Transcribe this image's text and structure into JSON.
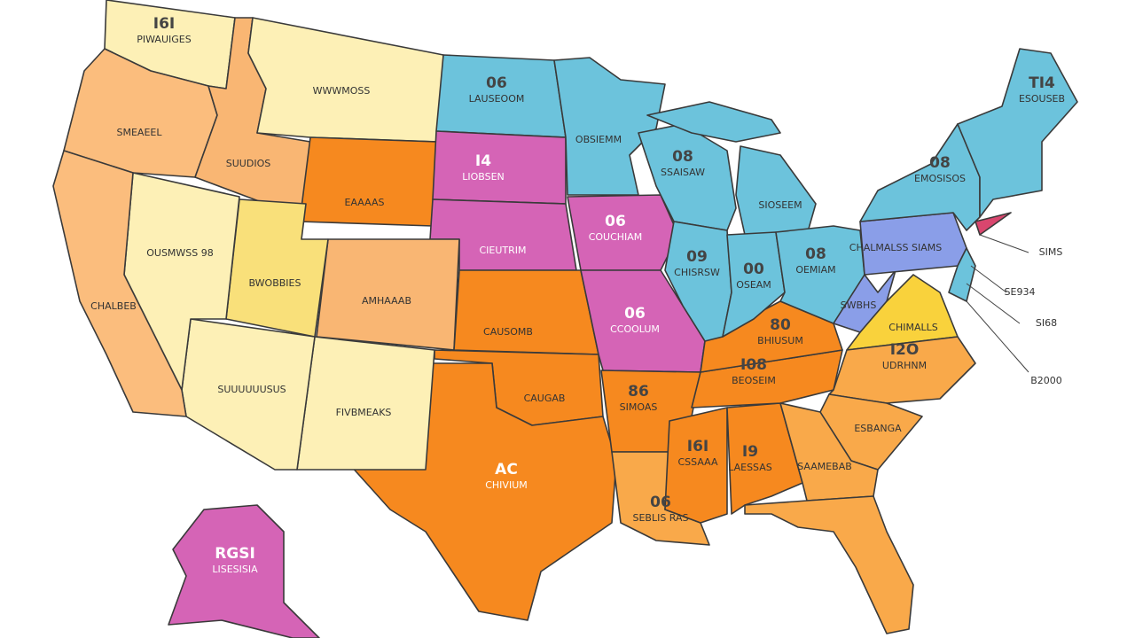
{
  "regions": [
    {
      "name": "PIWAUIGES",
      "code": "I6I"
    },
    {
      "name": "WWWMOSS"
    },
    {
      "name": "SMEAEEL"
    },
    {
      "name": "SUUDIOS"
    },
    {
      "name": "OUSMWSS 98"
    },
    {
      "name": "CHALBEB"
    },
    {
      "name": "BWOBBIES"
    },
    {
      "name": "SUUUUUUSUS"
    },
    {
      "name": "FIVBMEAKS"
    },
    {
      "name": "EAAAAS"
    },
    {
      "name": "AMHAAAB"
    },
    {
      "name": "LAUSEOOM",
      "code": "06"
    },
    {
      "name": "LIOBSEN",
      "code": "I4"
    },
    {
      "name": "CIEUTRIM"
    },
    {
      "name": "CAUSOMB"
    },
    {
      "name": "CAUGAB"
    },
    {
      "name": "CHIVIUM",
      "code": "AC"
    },
    {
      "name": "OBSIEMM"
    },
    {
      "name": "COUCHIAM",
      "code": "06"
    },
    {
      "name": "CCOOLUM",
      "code": "06"
    },
    {
      "name": "SIMOAS",
      "code": "86"
    },
    {
      "name": "SEBLIS RAS",
      "code": "06"
    },
    {
      "name": "SSAISAW",
      "code": "08"
    },
    {
      "name": "CHISRSW",
      "code": "09"
    },
    {
      "name": "SIOSEEM"
    },
    {
      "name": "OSEAM",
      "code": "00"
    },
    {
      "name": "OEMIAM",
      "code": "08"
    },
    {
      "name": "BHIUSUM",
      "code": "80"
    },
    {
      "name": "BEOSEIM",
      "code": "I08"
    },
    {
      "name": "CSSAAA",
      "code": "I6I"
    },
    {
      "name": "LAESSAS",
      "code": "I9"
    },
    {
      "name": "SAAMEBAB"
    },
    {
      "name": "ESBANGA"
    },
    {
      "name": "UDRHNM",
      "code": "I2O"
    },
    {
      "name": "CHIMALLS"
    },
    {
      "name": "SWBHS"
    },
    {
      "name": "CHALMALSS SIAMS"
    },
    {
      "name": "EMOSISOS",
      "code": "08"
    },
    {
      "name": "ESOUSEB",
      "code": "TI4"
    },
    {
      "name": "LISESISIA",
      "code": "RGSI"
    }
  ],
  "callouts": [
    "SIMS",
    "SE934",
    "SI68",
    "B2000"
  ]
}
